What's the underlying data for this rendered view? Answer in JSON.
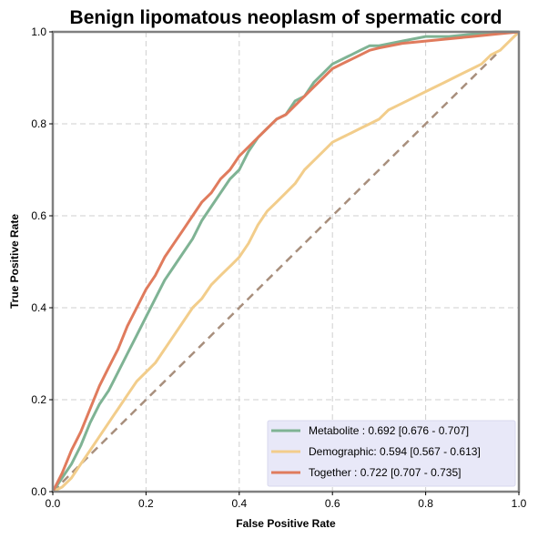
{
  "chart_data": {
    "type": "line",
    "title": "Benign lipomatous neoplasm of spermatic cord",
    "xlabel": "False Positive Rate",
    "ylabel": "True Positive Rate",
    "xlim": [
      0,
      1
    ],
    "ylim": [
      0,
      1
    ],
    "xticks": [
      "0.0",
      "0.2",
      "0.4",
      "0.6",
      "0.8",
      "1.0"
    ],
    "yticks": [
      "0.0",
      "0.2",
      "0.4",
      "0.6",
      "0.8",
      "1.0"
    ],
    "grid": true,
    "legend_position": "bottom-right",
    "series": [
      {
        "name": "Metabolite",
        "legend_label": "Metabolite      : 0.692 [0.676 - 0.707]",
        "color": "#7fb394",
        "x": [
          0,
          0.02,
          0.04,
          0.06,
          0.08,
          0.1,
          0.12,
          0.14,
          0.16,
          0.18,
          0.2,
          0.22,
          0.24,
          0.26,
          0.28,
          0.3,
          0.32,
          0.34,
          0.36,
          0.38,
          0.4,
          0.42,
          0.44,
          0.46,
          0.48,
          0.5,
          0.52,
          0.54,
          0.56,
          0.58,
          0.6,
          0.62,
          0.64,
          0.66,
          0.68,
          0.7,
          0.75,
          0.8,
          0.85,
          0.9,
          0.95,
          1.0
        ],
        "y": [
          0,
          0.03,
          0.06,
          0.1,
          0.15,
          0.19,
          0.22,
          0.26,
          0.3,
          0.34,
          0.38,
          0.42,
          0.46,
          0.49,
          0.52,
          0.55,
          0.59,
          0.62,
          0.65,
          0.68,
          0.7,
          0.74,
          0.77,
          0.79,
          0.81,
          0.82,
          0.85,
          0.86,
          0.89,
          0.91,
          0.93,
          0.94,
          0.95,
          0.96,
          0.97,
          0.97,
          0.98,
          0.99,
          0.99,
          0.995,
          1.0,
          1.0
        ]
      },
      {
        "name": "Demographic",
        "legend_label": "Demographic: 0.594 [0.567 - 0.613]",
        "color": "#f2cd8b",
        "x": [
          0,
          0.02,
          0.04,
          0.06,
          0.08,
          0.1,
          0.12,
          0.14,
          0.16,
          0.18,
          0.2,
          0.22,
          0.24,
          0.26,
          0.28,
          0.3,
          0.32,
          0.34,
          0.36,
          0.38,
          0.4,
          0.42,
          0.44,
          0.46,
          0.48,
          0.5,
          0.52,
          0.54,
          0.56,
          0.58,
          0.6,
          0.62,
          0.64,
          0.66,
          0.68,
          0.7,
          0.72,
          0.74,
          0.76,
          0.78,
          0.8,
          0.82,
          0.84,
          0.86,
          0.88,
          0.9,
          0.92,
          0.94,
          0.96,
          0.98,
          1.0
        ],
        "y": [
          0,
          0.01,
          0.03,
          0.06,
          0.09,
          0.12,
          0.15,
          0.18,
          0.21,
          0.24,
          0.26,
          0.28,
          0.31,
          0.34,
          0.37,
          0.4,
          0.42,
          0.45,
          0.47,
          0.49,
          0.51,
          0.54,
          0.58,
          0.61,
          0.63,
          0.65,
          0.67,
          0.7,
          0.72,
          0.74,
          0.76,
          0.77,
          0.78,
          0.79,
          0.8,
          0.81,
          0.83,
          0.84,
          0.85,
          0.86,
          0.87,
          0.88,
          0.89,
          0.9,
          0.91,
          0.92,
          0.93,
          0.95,
          0.96,
          0.98,
          1.0
        ]
      },
      {
        "name": "Together",
        "legend_label": "Together       : 0.722 [0.707 - 0.735]",
        "color": "#e07b5d",
        "x": [
          0,
          0.02,
          0.04,
          0.06,
          0.08,
          0.1,
          0.12,
          0.14,
          0.16,
          0.18,
          0.2,
          0.22,
          0.24,
          0.26,
          0.28,
          0.3,
          0.32,
          0.34,
          0.36,
          0.38,
          0.4,
          0.42,
          0.44,
          0.46,
          0.48,
          0.5,
          0.52,
          0.54,
          0.56,
          0.58,
          0.6,
          0.62,
          0.64,
          0.66,
          0.68,
          0.7,
          0.75,
          0.8,
          0.85,
          0.9,
          0.95,
          1.0
        ],
        "y": [
          0,
          0.04,
          0.09,
          0.13,
          0.18,
          0.23,
          0.27,
          0.31,
          0.36,
          0.4,
          0.44,
          0.47,
          0.51,
          0.54,
          0.57,
          0.6,
          0.63,
          0.65,
          0.68,
          0.7,
          0.73,
          0.75,
          0.77,
          0.79,
          0.81,
          0.82,
          0.84,
          0.86,
          0.88,
          0.9,
          0.92,
          0.93,
          0.94,
          0.95,
          0.96,
          0.965,
          0.975,
          0.98,
          0.985,
          0.99,
          0.995,
          1.0
        ]
      }
    ],
    "reference_line": {
      "color": "#a88f7d",
      "x": [
        0,
        1
      ],
      "y": [
        0,
        1
      ]
    },
    "legend_background": "#e8e8f8",
    "frame_color": "#808080"
  }
}
